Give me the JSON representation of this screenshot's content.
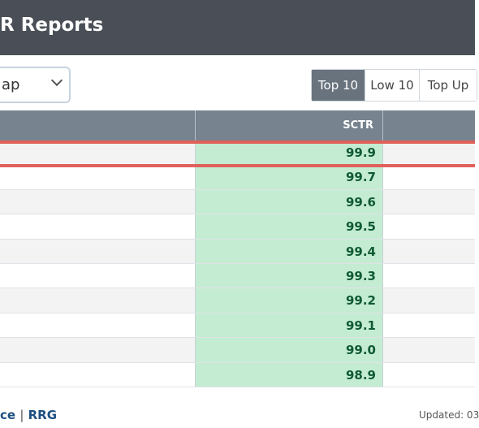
{
  "header": {
    "title": "R Reports"
  },
  "controls": {
    "select_value": "ap",
    "buttons": [
      {
        "label": "Top 10",
        "active": true
      },
      {
        "label": "Low 10",
        "active": false
      },
      {
        "label": "Top Up",
        "active": false
      }
    ]
  },
  "table": {
    "columns": {
      "sctr": "SCTR"
    },
    "rows": [
      {
        "sctr": "99.9"
      },
      {
        "sctr": "99.7"
      },
      {
        "sctr": "99.6"
      },
      {
        "sctr": "99.5"
      },
      {
        "sctr": "99.4"
      },
      {
        "sctr": "99.3"
      },
      {
        "sctr": "99.2"
      },
      {
        "sctr": "99.1"
      },
      {
        "sctr": "99.0"
      },
      {
        "sctr": "98.9"
      }
    ]
  },
  "footer": {
    "link_1": "ce",
    "separator": "|",
    "link_2": "RRG",
    "updated": "Updated: 03"
  },
  "colors": {
    "header_bg": "#4a4f57",
    "sctr_cell_bg": "#c4ecd2",
    "highlight_border": "#e0615b",
    "active_button_bg": "#68737e"
  }
}
